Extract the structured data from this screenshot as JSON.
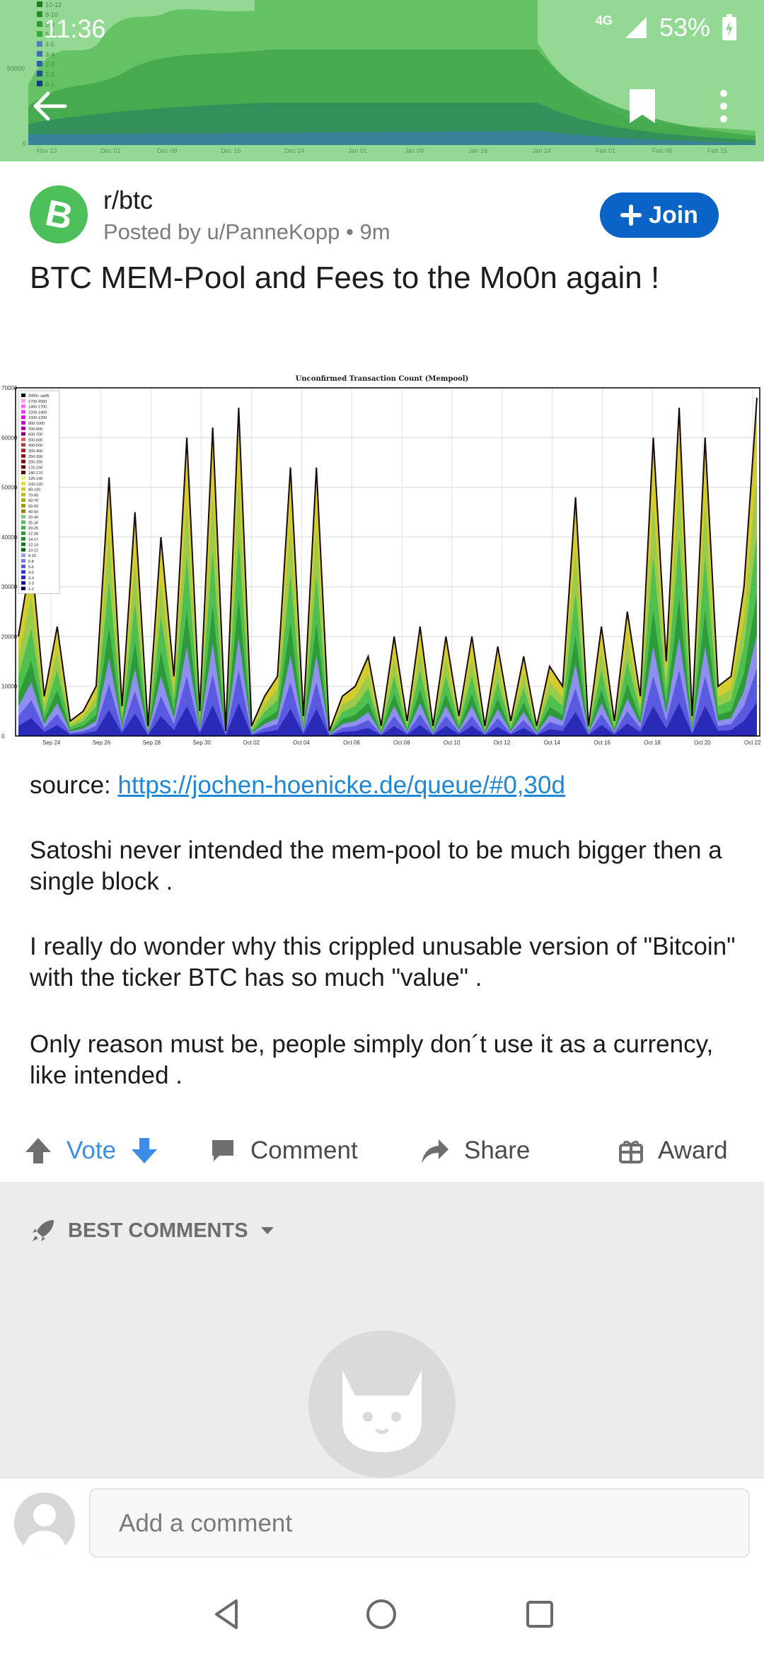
{
  "status_bar": {
    "time": "11:36",
    "network": "4G",
    "battery": "53%"
  },
  "toolbar": {
    "back_icon": "arrow-left-icon",
    "save_icon": "bookmark-icon",
    "more_icon": "more-vertical-icon"
  },
  "header_chart": {
    "legend": [
      "10-12",
      "8-10",
      "6-8",
      "5-6",
      "4-5",
      "3-4",
      "2-3",
      "1-2",
      "0-1"
    ],
    "y_tick": "50000",
    "y_zero": "0",
    "x_ticks": [
      "Nov 23",
      "Dec 01",
      "Dec 08",
      "Dec 16",
      "Dec 24",
      "Jan 01",
      "Jan 08",
      "Jan 16",
      "Jan 24",
      "Feb 01",
      "Feb 08",
      "Feb 15"
    ]
  },
  "post": {
    "subreddit": "r/btc",
    "posted_by": "Posted by u/PanneKopp • 9m",
    "join_label": "Join",
    "title": "BTC MEM-Pool and Fees to the Mo0n again !"
  },
  "chart_data": {
    "type": "area",
    "title": "Unconfirmed Transaction Count (Mempool)",
    "ylim": [
      0,
      70000
    ],
    "y_ticks": [
      "0",
      "10000",
      "20000",
      "30000",
      "40000",
      "50000",
      "60000",
      "70000"
    ],
    "x_ticks": [
      "Sep 24",
      "Sep 26",
      "Sep 28",
      "Sep 30",
      "Oct 02",
      "Oct 04",
      "Oct 06",
      "Oct 08",
      "Oct 10",
      "Oct 12",
      "Oct 14",
      "Oct 16",
      "Oct 18",
      "Oct 20",
      "Oct 22"
    ],
    "legend": [
      "2000+ sat/B",
      "1700-2000",
      "1400-1700",
      "1200-1400",
      "1000-1200",
      "800-1000",
      "700-800",
      "600-700",
      "500-600",
      "400-500",
      "300-400",
      "250-300",
      "200-250",
      "170-200",
      "140-170",
      "120-140",
      "100-120",
      "80-100",
      "70-80",
      "60-70",
      "50-60",
      "40-50",
      "30-40",
      "25-30",
      "20-25",
      "17-20",
      "14-17",
      "12-14",
      "10-12",
      "8-10",
      "6-8",
      "5-6",
      "4-5",
      "3-4",
      "2-3",
      "1-2"
    ],
    "legend_colors": [
      "#000000",
      "#ff99ff",
      "#ff66ff",
      "#ff33ff",
      "#ee00ee",
      "#cc00cc",
      "#aa0099",
      "#880077",
      "#cc6666",
      "#aa4444",
      "#992222",
      "#881111",
      "#770000",
      "#660000",
      "#550000",
      "#eeee77",
      "#dddd55",
      "#cccc33",
      "#bbbb22",
      "#aaaa11",
      "#999900",
      "#888800",
      "#77cc77",
      "#55bb55",
      "#44aa44",
      "#339933",
      "#228822",
      "#117711",
      "#006600",
      "#9999ff",
      "#7777ee",
      "#5555dd",
      "#3333cc",
      "#2222aa",
      "#111188",
      "#000066"
    ],
    "series_total": {
      "x": [
        "Sep 24",
        "Sep 24",
        "Sep 25",
        "Sep 25",
        "Sep 26",
        "Sep 26",
        "Sep 27",
        "Sep 27",
        "Sep 28",
        "Sep 28",
        "Sep 29",
        "Sep 29",
        "Sep 30",
        "Sep 30",
        "Oct 01",
        "Oct 01",
        "Oct 02",
        "Oct 02",
        "Oct 03",
        "Oct 03",
        "Oct 04",
        "Oct 04",
        "Oct 05",
        "Oct 05",
        "Oct 06",
        "Oct 06",
        "Oct 07",
        "Oct 07",
        "Oct 08",
        "Oct 08",
        "Oct 09",
        "Oct 09",
        "Oct 10",
        "Oct 10",
        "Oct 11",
        "Oct 11",
        "Oct 12",
        "Oct 12",
        "Oct 13",
        "Oct 13",
        "Oct 14",
        "Oct 14",
        "Oct 15",
        "Oct 15",
        "Oct 16",
        "Oct 16",
        "Oct 17",
        "Oct 17",
        "Oct 18",
        "Oct 18",
        "Oct 19",
        "Oct 19",
        "Oct 20",
        "Oct 20",
        "Oct 21",
        "Oct 21",
        "Oct 22",
        "Oct 22"
      ],
      "values": [
        20000,
        36000,
        8000,
        22000,
        3000,
        5000,
        10000,
        52000,
        6000,
        45000,
        2000,
        40000,
        12000,
        60000,
        5000,
        62000,
        1000,
        66000,
        2000,
        8000,
        12000,
        54000,
        4000,
        54000,
        1000,
        8000,
        10000,
        16000,
        2000,
        20000,
        3000,
        22000,
        2000,
        20000,
        4000,
        20000,
        2000,
        18000,
        3000,
        16000,
        2000,
        14000,
        10000,
        48000,
        2000,
        22000,
        3000,
        25000,
        8000,
        60000,
        15000,
        66000,
        4000,
        60000,
        10000,
        12000,
        30000,
        68000
      ]
    }
  },
  "body": {
    "source_prefix": "source: ",
    "source_link": "https://jochen-hoenicke.de/queue/#0,30d",
    "p1": "Satoshi never intended the mem-pool to be much bigger then a single block .",
    "p2": "I really do wonder why this crippled unusable version of \"Bitcoin\" with the ticker BTC has so much \"value\" .",
    "p3": "Only reason must be, people simply don´t use it as a currency, like intended ."
  },
  "actions": {
    "vote": "Vote",
    "comment": "Comment",
    "share": "Share",
    "award": "Award"
  },
  "comments": {
    "sort_label": "BEST COMMENTS",
    "add_placeholder": "Add a comment"
  },
  "colors": {
    "accent": "#0a63c7",
    "vote_blue": "#3c8de6",
    "subreddit_green": "#4cbf5a",
    "hero_green": "#8fd68f"
  }
}
